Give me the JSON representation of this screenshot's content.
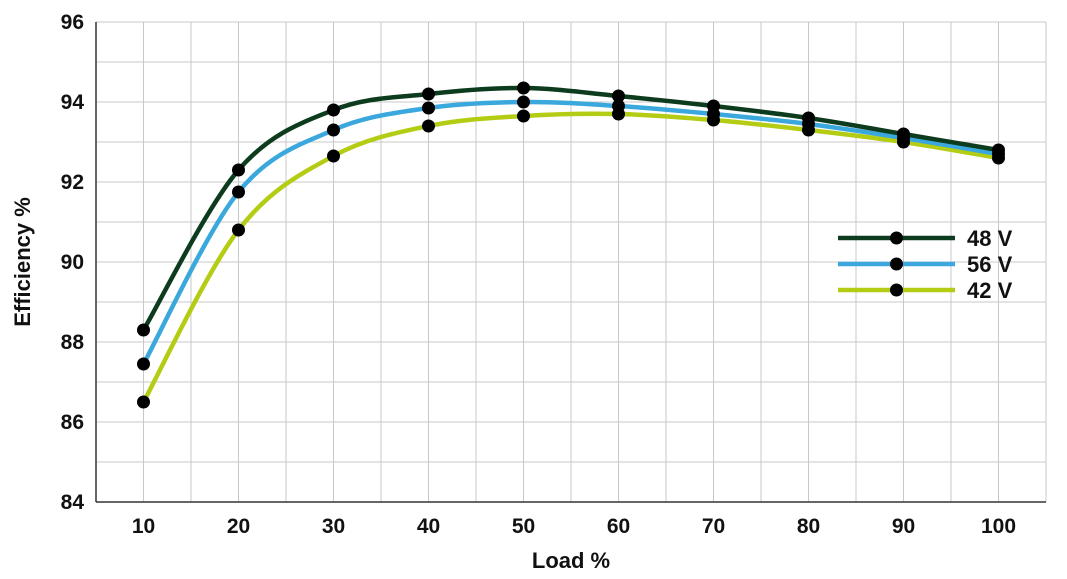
{
  "chart_data": {
    "type": "line",
    "xlabel": "Load %",
    "ylabel": "Efficiency %",
    "x": [
      10,
      20,
      30,
      40,
      50,
      60,
      70,
      80,
      90,
      100
    ],
    "xlim": [
      5,
      105
    ],
    "ylim": [
      84,
      96
    ],
    "x_ticks": [
      10,
      20,
      30,
      40,
      50,
      60,
      70,
      80,
      90,
      100
    ],
    "y_ticks": [
      84,
      86,
      88,
      90,
      92,
      94,
      96
    ],
    "grid": true,
    "legend_position": "right",
    "series": [
      {
        "name": "48 V",
        "color": "#0d3b1e",
        "values": [
          88.3,
          92.3,
          93.8,
          94.2,
          94.35,
          94.15,
          93.9,
          93.6,
          93.2,
          92.8
        ]
      },
      {
        "name": "56 V",
        "color": "#3aa8dc",
        "values": [
          87.45,
          91.75,
          93.3,
          93.85,
          94.0,
          93.9,
          93.7,
          93.45,
          93.1,
          92.7
        ]
      },
      {
        "name": "42 V",
        "color": "#b5cc14",
        "values": [
          86.5,
          90.8,
          92.65,
          93.4,
          93.65,
          93.7,
          93.55,
          93.3,
          93.0,
          92.6
        ]
      }
    ]
  }
}
